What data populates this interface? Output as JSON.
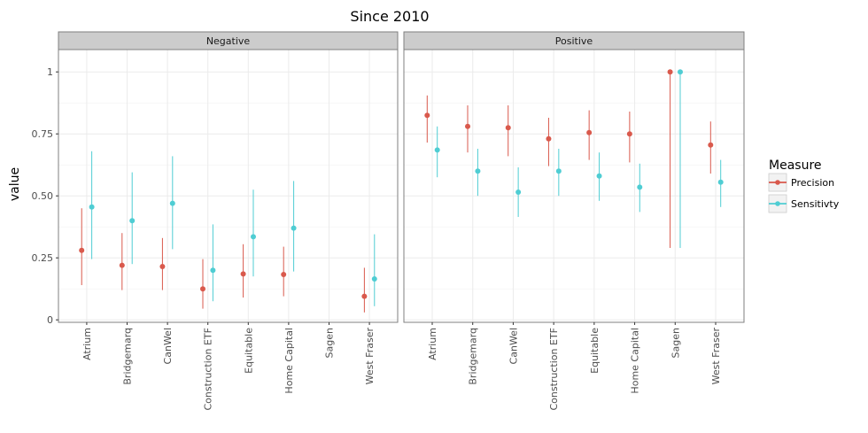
{
  "chart_data": {
    "type": "errorbar",
    "title": "Since 2010",
    "xlabel": "",
    "ylabel": "value",
    "ylim": [
      -0.01,
      1.09
    ],
    "yticks": [
      0,
      0.25,
      0.5,
      0.75,
      1
    ],
    "ytick_labels": [
      "0",
      "0.25",
      "0.50",
      "0.75",
      "1"
    ],
    "grid": true,
    "legend_position": "right",
    "categories": [
      "Atrium",
      "Bridgemarq",
      "CanWel",
      "Construction ETF",
      "Equitable",
      "Home Capital",
      "Sagen",
      "West Fraser"
    ],
    "legend": {
      "title": "Measure",
      "items": [
        {
          "name": "Precision",
          "color": "#d9594c"
        },
        {
          "name": "Sensitivty",
          "color": "#4fcdd3"
        }
      ]
    },
    "panels": [
      {
        "label": "Negative",
        "series": [
          {
            "name": "Precision",
            "color": "#d9594c",
            "points": [
              {
                "category": "Atrium",
                "value": 0.28,
                "low": 0.14,
                "high": 0.45
              },
              {
                "category": "Bridgemarq",
                "value": 0.22,
                "low": 0.12,
                "high": 0.35
              },
              {
                "category": "CanWel",
                "value": 0.215,
                "low": 0.12,
                "high": 0.33
              },
              {
                "category": "Construction ETF",
                "value": 0.125,
                "low": 0.045,
                "high": 0.245
              },
              {
                "category": "Equitable",
                "value": 0.185,
                "low": 0.09,
                "high": 0.305
              },
              {
                "category": "Home Capital",
                "value": 0.183,
                "low": 0.095,
                "high": 0.295
              },
              {
                "category": "West Fraser",
                "value": 0.095,
                "low": 0.03,
                "high": 0.21
              }
            ]
          },
          {
            "name": "Sensitivty",
            "color": "#4fcdd3",
            "points": [
              {
                "category": "Atrium",
                "value": 0.455,
                "low": 0.245,
                "high": 0.68
              },
              {
                "category": "Bridgemarq",
                "value": 0.4,
                "low": 0.225,
                "high": 0.595
              },
              {
                "category": "CanWel",
                "value": 0.47,
                "low": 0.285,
                "high": 0.66
              },
              {
                "category": "Construction ETF",
                "value": 0.2,
                "low": 0.075,
                "high": 0.385
              },
              {
                "category": "Equitable",
                "value": 0.335,
                "low": 0.175,
                "high": 0.525
              },
              {
                "category": "Home Capital",
                "value": 0.37,
                "low": 0.195,
                "high": 0.56
              },
              {
                "category": "West Fraser",
                "value": 0.165,
                "low": 0.055,
                "high": 0.345
              }
            ]
          }
        ]
      },
      {
        "label": "Positive",
        "series": [
          {
            "name": "Precision",
            "color": "#d9594c",
            "points": [
              {
                "category": "Atrium",
                "value": 0.825,
                "low": 0.715,
                "high": 0.905
              },
              {
                "category": "Bridgemarq",
                "value": 0.78,
                "low": 0.675,
                "high": 0.865
              },
              {
                "category": "CanWel",
                "value": 0.775,
                "low": 0.66,
                "high": 0.865
              },
              {
                "category": "Construction ETF",
                "value": 0.73,
                "low": 0.62,
                "high": 0.815
              },
              {
                "category": "Equitable",
                "value": 0.755,
                "low": 0.645,
                "high": 0.845
              },
              {
                "category": "Home Capital",
                "value": 0.75,
                "low": 0.635,
                "high": 0.84
              },
              {
                "category": "Sagen",
                "value": 1.0,
                "low": 0.29,
                "high": 1.0
              },
              {
                "category": "West Fraser",
                "value": 0.705,
                "low": 0.59,
                "high": 0.8
              }
            ]
          },
          {
            "name": "Sensitivty",
            "color": "#4fcdd3",
            "points": [
              {
                "category": "Atrium",
                "value": 0.685,
                "low": 0.575,
                "high": 0.78
              },
              {
                "category": "Bridgemarq",
                "value": 0.6,
                "low": 0.5,
                "high": 0.69
              },
              {
                "category": "CanWel",
                "value": 0.515,
                "low": 0.415,
                "high": 0.615
              },
              {
                "category": "Construction ETF",
                "value": 0.6,
                "low": 0.5,
                "high": 0.69
              },
              {
                "category": "Equitable",
                "value": 0.58,
                "low": 0.48,
                "high": 0.675
              },
              {
                "category": "Home Capital",
                "value": 0.535,
                "low": 0.435,
                "high": 0.63
              },
              {
                "category": "Sagen",
                "value": 1.0,
                "low": 0.29,
                "high": 1.0
              },
              {
                "category": "West Fraser",
                "value": 0.555,
                "low": 0.455,
                "high": 0.645
              }
            ]
          }
        ]
      }
    ]
  }
}
